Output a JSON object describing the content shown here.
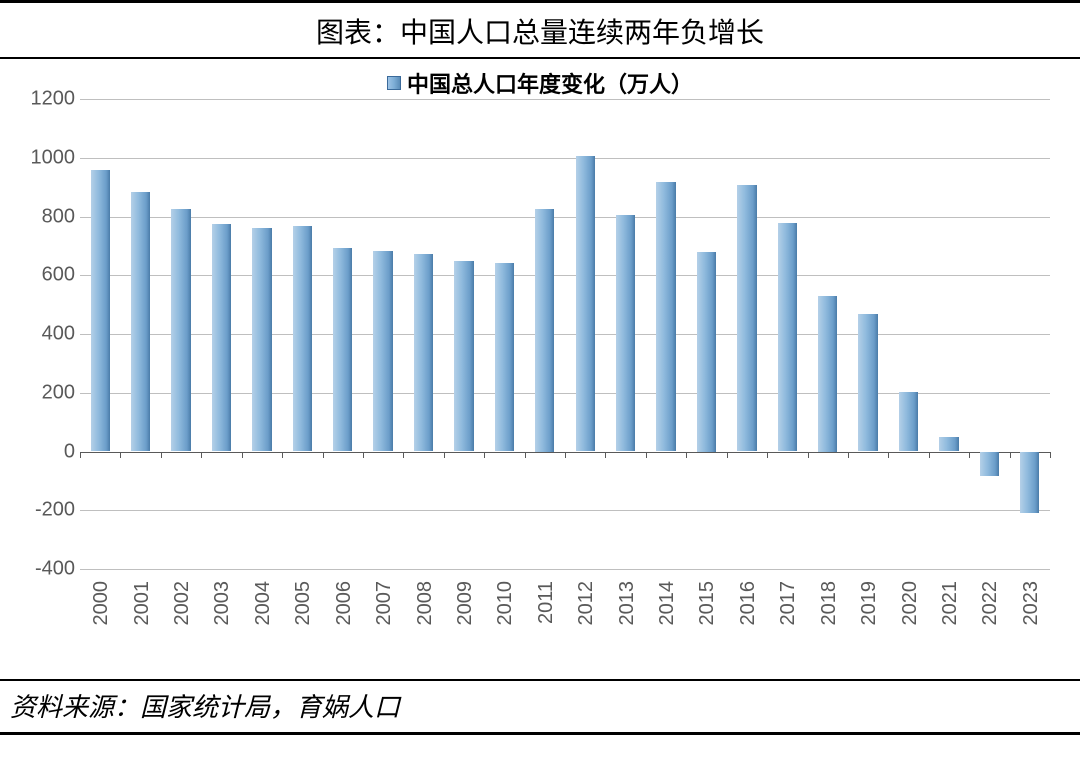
{
  "title": "图表：中国人口总量连续两年负增长",
  "source": "资料来源：国家统计局，育娲人口",
  "chart": {
    "type": "bar",
    "legend_label": "中国总人口年度变化（万人）",
    "categories": [
      "2000",
      "2001",
      "2002",
      "2003",
      "2004",
      "2005",
      "2006",
      "2007",
      "2008",
      "2009",
      "2010",
      "2011",
      "2012",
      "2013",
      "2014",
      "2015",
      "2016",
      "2017",
      "2018",
      "2019",
      "2020",
      "2021",
      "2022",
      "2023"
    ],
    "values": [
      957,
      884,
      826,
      774,
      761,
      768,
      692,
      681,
      673,
      649,
      641,
      825,
      1006,
      804,
      917,
      680,
      906,
      779,
      530,
      467,
      204,
      48,
      -85,
      -208
    ],
    "ylim": [
      -400,
      1200
    ],
    "ytick_step": 200,
    "bar_ratio": 0.48,
    "bar_gradient": [
      "#b4d0e8",
      "#8fbadd",
      "#6b9dc9",
      "#4a7ba8"
    ],
    "grid_color": "#bfbfbf",
    "axis_color": "#595959",
    "label_color": "#595959",
    "label_fontsize": 20,
    "title_fontsize": 28,
    "source_fontsize": 26,
    "background_color": "#ffffff"
  }
}
